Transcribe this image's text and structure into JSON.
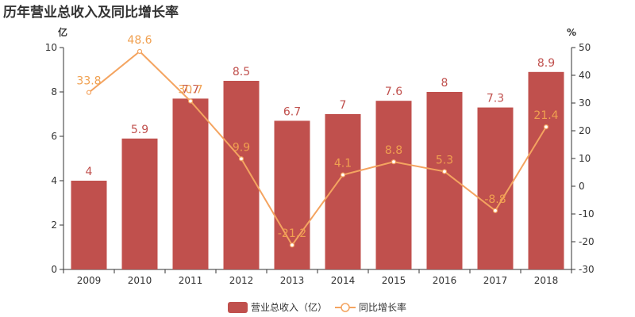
{
  "chart_data": {
    "type": "bar",
    "title": "历年营业总收入及同比增长率",
    "categories": [
      "2009",
      "2010",
      "2011",
      "2012",
      "2013",
      "2014",
      "2015",
      "2016",
      "2017",
      "2018"
    ],
    "series": [
      {
        "name": "营业总收入（亿）",
        "type": "bar",
        "axis": "left",
        "values": [
          4,
          5.9,
          7.7,
          8.5,
          6.7,
          7,
          7.6,
          8,
          7.3,
          8.9
        ],
        "labels": [
          "4",
          "5.9",
          "7.7",
          "8.5",
          "6.7",
          "7",
          "7.6",
          "8",
          "7.3",
          "8.9"
        ]
      },
      {
        "name": "同比增长率",
        "type": "line",
        "axis": "right",
        "values": [
          33.8,
          48.6,
          30.7,
          9.9,
          -21.2,
          4.1,
          8.8,
          5.3,
          -8.8,
          21.4
        ],
        "labels": [
          "33.8",
          "48.6",
          "30.7",
          "9.9",
          "-21.2",
          "4.1",
          "8.8",
          "5.3",
          "-8.8",
          "21.4"
        ]
      }
    ],
    "y_left": {
      "unit": "亿",
      "ylim": [
        0,
        10
      ],
      "ticks": [
        "0",
        "2",
        "4",
        "6",
        "8",
        "10"
      ]
    },
    "y_right": {
      "unit": "%",
      "ylim": [
        -30,
        50
      ],
      "ticks": [
        "-30",
        "-20",
        "-10",
        "0",
        "10",
        "20",
        "30",
        "40",
        "50"
      ]
    },
    "grid": false,
    "legend_position": "bottom-center",
    "colors": {
      "bar": "#c0504d",
      "line": "#f4a460",
      "bar_label": "#c0504d",
      "line_label": "#f0a050",
      "axis": "#333333"
    }
  }
}
